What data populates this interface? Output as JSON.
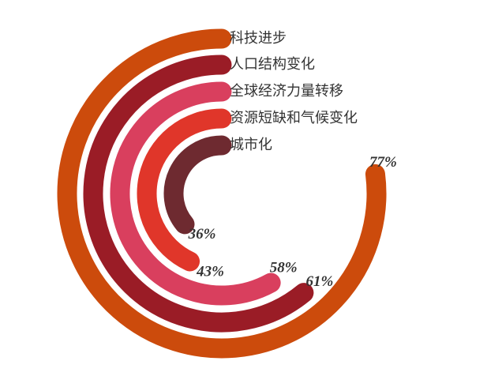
{
  "chart_data": {
    "type": "radial-bar",
    "categories": [
      "科技进步",
      "人口结构变化",
      "全球经济力量转移",
      "资源短缺和气候变化",
      "城市化"
    ],
    "values": [
      77,
      61,
      58,
      43,
      36
    ],
    "value_labels": [
      "77%",
      "61%",
      "58%",
      "43%",
      "36%"
    ],
    "colors": [
      "#cc4b0c",
      "#9a1c26",
      "#d93f5e",
      "#e0362a",
      "#6e2a30"
    ],
    "max": 100
  }
}
